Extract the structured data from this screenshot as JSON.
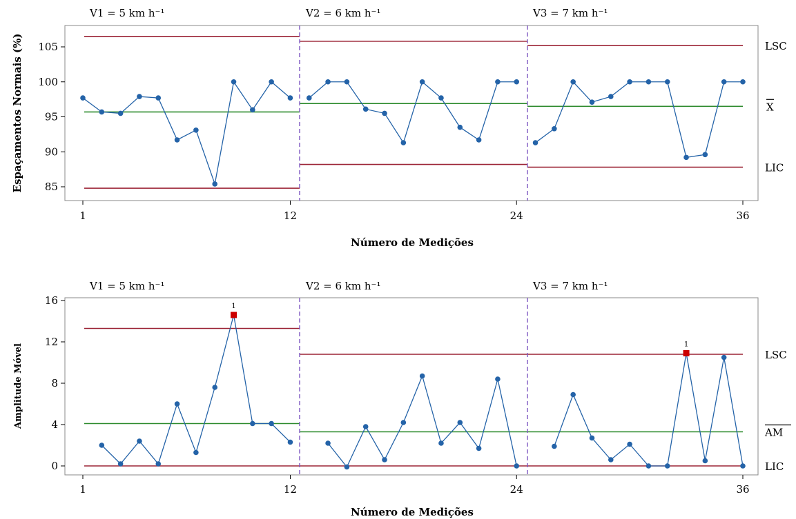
{
  "colors": {
    "series": "#2463A8",
    "center": "#2E8B2E",
    "limit": "#9B2335",
    "divider": "#7E57C2",
    "flag": "#CC0000",
    "frame": "#888888"
  },
  "chart_data": [
    {
      "type": "line",
      "ylabel": "Espaçamentos Normais (%)",
      "xlabel": "Número de Medições",
      "xticks": [
        1,
        12,
        24,
        36
      ],
      "xlim": [
        0,
        36.5
      ],
      "ylim": [
        84,
        108
      ],
      "yticks": [
        85,
        90,
        95,
        100,
        105
      ],
      "phases": [
        {
          "label": "V1 = 5  km h⁻¹",
          "start": 1,
          "end": 12,
          "lsc": 106.5,
          "center": 95.7,
          "lic": 84.8
        },
        {
          "label": "V2 = 6  km h⁻¹",
          "start": 13,
          "end": 24,
          "lsc": 105.8,
          "center": 96.9,
          "lic": 88.2
        },
        {
          "label": "V3 = 7  km h⁻¹",
          "start": 25,
          "end": 36,
          "lsc": 105.2,
          "center": 96.5,
          "lic": 87.8
        }
      ],
      "dividers": [
        12.5,
        24.5
      ],
      "limit_labels": {
        "upper": "LSC",
        "center": "X",
        "lower": "LIC"
      },
      "x": [
        1,
        2,
        3,
        4,
        5,
        6,
        7,
        8,
        9,
        10,
        11,
        12,
        13,
        14,
        15,
        16,
        17,
        18,
        19,
        20,
        21,
        22,
        23,
        24,
        25,
        26,
        27,
        28,
        29,
        30,
        31,
        32,
        33,
        34,
        35,
        36
      ],
      "values": [
        97.7,
        95.7,
        95.5,
        97.9,
        97.7,
        91.7,
        93.1,
        85.4,
        100,
        96,
        100,
        97.7,
        97.7,
        100,
        100,
        96.1,
        95.5,
        91.3,
        100,
        97.7,
        93.5,
        91.7,
        100,
        100,
        91.3,
        93.3,
        100,
        97.1,
        97.9,
        100,
        100,
        100,
        89.2,
        89.6,
        100,
        100
      ],
      "flags": []
    },
    {
      "type": "line",
      "ylabel": "Amplitude Móvel",
      "xlabel": "Número de Medições",
      "xticks": [
        1,
        12,
        24,
        36
      ],
      "xlim": [
        0,
        36.5
      ],
      "ylim": [
        -1,
        16.5
      ],
      "yticks": [
        0,
        4,
        8,
        12,
        16
      ],
      "phases": [
        {
          "label": "V1 = 5  km h⁻¹",
          "start": 1,
          "end": 12,
          "lsc": 13.3,
          "center": 4.1,
          "lic": 0
        },
        {
          "label": "V2 = 6  km h⁻¹",
          "start": 13,
          "end": 24,
          "lsc": 10.8,
          "center": 3.3,
          "lic": 0
        },
        {
          "label": "V3 = 7  km h⁻¹",
          "start": 25,
          "end": 36,
          "lsc": 10.8,
          "center": 3.3,
          "lic": 0
        }
      ],
      "dividers": [
        12.5,
        24.5
      ],
      "limit_labels": {
        "upper": "LSC",
        "center": "AM",
        "lower": "LIC"
      },
      "x": [
        2,
        3,
        4,
        5,
        6,
        7,
        8,
        9,
        10,
        11,
        12,
        14,
        15,
        16,
        17,
        18,
        19,
        20,
        21,
        22,
        23,
        24,
        26,
        27,
        28,
        29,
        30,
        31,
        32,
        33,
        34,
        35,
        36
      ],
      "values": [
        2.0,
        0.2,
        2.4,
        0.2,
        6.0,
        1.3,
        7.6,
        14.6,
        4.1,
        4.1,
        2.3,
        2.2,
        -0.1,
        3.8,
        0.6,
        4.2,
        8.7,
        2.2,
        4.2,
        1.7,
        8.4,
        0,
        1.9,
        6.9,
        2.7,
        0.6,
        2.1,
        0,
        0,
        10.9,
        0.5,
        10.5,
        0
      ],
      "flags": [
        {
          "x": 9,
          "label": "1"
        },
        {
          "x": 33,
          "label": "1"
        }
      ]
    }
  ]
}
